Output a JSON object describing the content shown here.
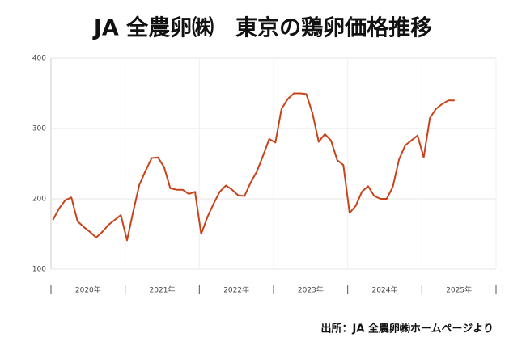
{
  "chart_data": {
    "type": "line",
    "title": "JA 全農卵㈱　東京の鶏卵価格推移",
    "source": "出所：JA 全農卵㈱ホームページより",
    "x_labels": [
      "2020年",
      "2021年",
      "2022年",
      "2023年",
      "2024年",
      "2025年"
    ],
    "color": "#c8431a",
    "values": [
      170,
      186,
      198,
      202,
      168,
      160,
      153,
      145,
      153,
      163,
      170,
      177,
      141,
      182,
      220,
      240,
      258,
      259,
      245,
      215,
      213,
      213,
      207,
      210,
      150,
      174,
      193,
      210,
      219,
      213,
      205,
      204,
      223,
      239,
      261,
      285,
      280,
      328,
      342,
      350,
      350,
      349,
      322,
      281,
      292,
      283,
      255,
      248,
      180,
      190,
      210,
      218,
      204,
      200,
      200,
      217,
      256,
      276,
      283,
      290,
      259,
      315,
      328,
      335,
      340,
      340
    ],
    "ylim": [
      100,
      400
    ],
    "yticks": [
      100,
      200,
      300,
      400
    ],
    "grid": true
  }
}
